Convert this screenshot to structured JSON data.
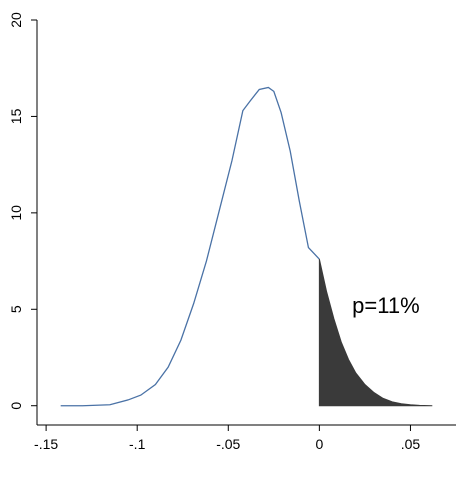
{
  "chart_data": {
    "type": "area",
    "title": "",
    "xlabel": "",
    "ylabel": "",
    "xlim": [
      -0.155,
      0.075
    ],
    "ylim": [
      -1,
      20
    ],
    "x_ticks": [
      {
        "value": -0.15,
        "label": "-.15"
      },
      {
        "value": -0.1,
        "label": "-.1"
      },
      {
        "value": -0.05,
        "label": "-.05"
      },
      {
        "value": 0,
        "label": "0"
      },
      {
        "value": 0.05,
        "label": ".05"
      }
    ],
    "y_ticks": [
      {
        "value": 0,
        "label": "0"
      },
      {
        "value": 5,
        "label": "5"
      },
      {
        "value": 10,
        "label": "10"
      },
      {
        "value": 15,
        "label": "15"
      },
      {
        "value": 20,
        "label": "20"
      }
    ],
    "grid": false,
    "series": [
      {
        "type": "line",
        "color": "#4a72a6",
        "x": [
          -0.142,
          -0.13,
          -0.115,
          -0.105,
          -0.098,
          -0.09,
          -0.083,
          -0.076,
          -0.069,
          -0.062,
          -0.055,
          -0.048,
          -0.042,
          -0.038,
          -0.033,
          -0.028,
          -0.025,
          -0.021,
          -0.016,
          -0.011,
          -0.006,
          0
        ],
        "y": [
          0,
          0,
          0.05,
          0.3,
          0.55,
          1.1,
          2.0,
          3.4,
          5.3,
          7.5,
          10.1,
          12.7,
          15.3,
          15.8,
          16.4,
          16.5,
          16.3,
          15.2,
          13.2,
          10.6,
          8.2,
          7.6
        ]
      },
      {
        "type": "area",
        "color": "#3a3a3a",
        "x": [
          0,
          0.004,
          0.008,
          0.012,
          0.016,
          0.02,
          0.025,
          0.03,
          0.035,
          0.04,
          0.045,
          0.05,
          0.055,
          0.06,
          0.062
        ],
        "y": [
          7.6,
          5.9,
          4.5,
          3.3,
          2.4,
          1.7,
          1.1,
          0.68,
          0.38,
          0.2,
          0.1,
          0.05,
          0.02,
          0.005,
          0
        ]
      }
    ],
    "annotations": [
      {
        "text": "p=11%",
        "x": 0.018,
        "y": 4.8
      }
    ]
  }
}
